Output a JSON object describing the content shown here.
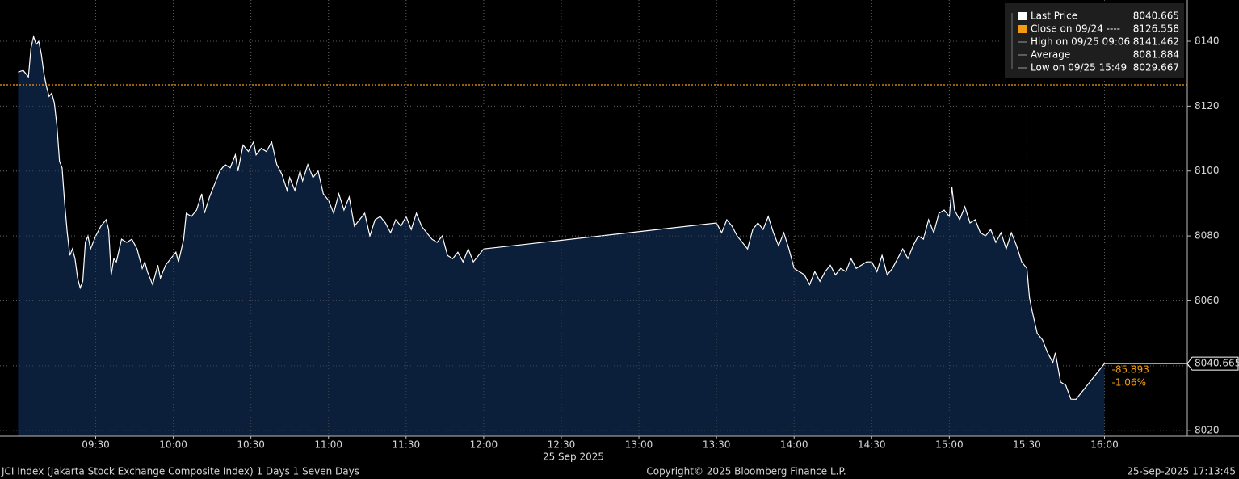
{
  "chart_data": {
    "type": "area",
    "xlabel": "25 Sep 2025",
    "x": [
      "09:00",
      "09:02",
      "09:04",
      "09:05",
      "09:06",
      "09:07",
      "09:08",
      "09:09",
      "09:10",
      "09:11",
      "09:12",
      "09:13",
      "09:14",
      "09:15",
      "09:16",
      "09:17",
      "09:18",
      "09:19",
      "09:20",
      "09:21",
      "09:22",
      "09:23",
      "09:24",
      "09:25",
      "09:26",
      "09:27",
      "09:28",
      "09:30",
      "09:32",
      "09:34",
      "09:35",
      "09:36",
      "09:37",
      "09:38",
      "09:40",
      "09:42",
      "09:44",
      "09:46",
      "09:48",
      "09:49",
      "09:50",
      "09:52",
      "09:54",
      "09:55",
      "09:57",
      "09:59",
      "10:01",
      "10:02",
      "10:04",
      "10:05",
      "10:07",
      "10:09",
      "10:11",
      "10:12",
      "10:14",
      "10:16",
      "10:18",
      "10:20",
      "10:22",
      "10:24",
      "10:25",
      "10:27",
      "10:29",
      "10:31",
      "10:32",
      "10:34",
      "10:36",
      "10:38",
      "10:40",
      "10:42",
      "10:44",
      "10:45",
      "10:47",
      "10:49",
      "10:50",
      "10:52",
      "10:54",
      "10:56",
      "10:58",
      "11:00",
      "11:02",
      "11:04",
      "11:06",
      "11:08",
      "11:10",
      "11:12",
      "11:14",
      "11:16",
      "11:18",
      "11:20",
      "11:22",
      "11:24",
      "11:26",
      "11:28",
      "11:30",
      "11:32",
      "11:34",
      "11:36",
      "11:38",
      "11:40",
      "11:42",
      "11:44",
      "11:46",
      "11:48",
      "11:50",
      "11:52",
      "11:54",
      "11:56",
      "11:58",
      "12:00",
      "13:30",
      "13:32",
      "13:34",
      "13:36",
      "13:38",
      "13:40",
      "13:42",
      "13:44",
      "13:46",
      "13:48",
      "13:50",
      "13:52",
      "13:54",
      "13:56",
      "13:58",
      "14:00",
      "14:02",
      "14:04",
      "14:06",
      "14:08",
      "14:10",
      "14:12",
      "14:14",
      "14:16",
      "14:18",
      "14:20",
      "14:22",
      "14:24",
      "14:26",
      "14:28",
      "14:30",
      "14:32",
      "14:34",
      "14:36",
      "14:38",
      "14:40",
      "14:42",
      "14:44",
      "14:46",
      "14:48",
      "14:50",
      "14:52",
      "14:54",
      "14:56",
      "14:58",
      "15:00",
      "15:01",
      "15:02",
      "15:04",
      "15:06",
      "15:08",
      "15:10",
      "15:12",
      "15:14",
      "15:16",
      "15:18",
      "15:20",
      "15:22",
      "15:24",
      "15:26",
      "15:28",
      "15:30",
      "15:31",
      "15:32",
      "15:34",
      "15:36",
      "15:38",
      "15:40",
      "15:41",
      "15:43",
      "15:45",
      "15:47",
      "15:49",
      "16:00"
    ],
    "series": [
      {
        "name": "Last Price",
        "color": "#ffffff",
        "fill": "#0b1f3a",
        "values": [
          8130.5,
          8131,
          8129,
          8138,
          8141.462,
          8139,
          8140,
          8136,
          8130,
          8126,
          8123,
          8124,
          8121,
          8114,
          8103,
          8101,
          8090,
          8081,
          8074,
          8076,
          8073,
          8067,
          8064,
          8066,
          8078,
          8080,
          8076,
          8080,
          8083,
          8085,
          8082,
          8068,
          8073,
          8072,
          8079,
          8078,
          8079,
          8076,
          8070,
          8072,
          8069,
          8065,
          8071,
          8067,
          8071,
          8073,
          8075,
          8072,
          8079,
          8087,
          8086,
          8088,
          8093,
          8087,
          8092,
          8096,
          8100,
          8102,
          8101,
          8105,
          8100,
          8108,
          8106,
          8109,
          8105,
          8107,
          8106,
          8109,
          8102,
          8099,
          8094,
          8098,
          8094,
          8100,
          8097,
          8102,
          8098,
          8100,
          8093,
          8091,
          8087,
          8093,
          8088,
          8092,
          8083,
          8085,
          8087,
          8080,
          8085,
          8086,
          8084,
          8081,
          8085,
          8083,
          8086,
          8082,
          8087,
          8083,
          8081,
          8079,
          8078,
          8080,
          8074,
          8073,
          8075,
          8072,
          8076,
          8072,
          8074,
          8076,
          8084,
          8081,
          8085,
          8083,
          8080,
          8078,
          8076,
          8082,
          8084,
          8082,
          8086,
          8081,
          8077,
          8081,
          8076,
          8070,
          8069,
          8068,
          8065,
          8069,
          8066,
          8069,
          8071,
          8068,
          8070,
          8069,
          8073,
          8070,
          8071,
          8072,
          8072,
          8069,
          8074,
          8068,
          8070,
          8073,
          8076,
          8073,
          8077,
          8080,
          8079,
          8085,
          8081,
          8087,
          8088,
          8086,
          8095,
          8088,
          8085,
          8089,
          8084,
          8085,
          8081,
          8080,
          8082,
          8078,
          8081,
          8076,
          8081,
          8077,
          8072,
          8070,
          8061,
          8057,
          8050,
          8048,
          8044,
          8041,
          8044,
          8035,
          8034,
          8029.7,
          8029.667,
          8040.665
        ]
      }
    ],
    "xlim": [
      "08:53",
      "16:32"
    ],
    "xticks": [
      "09:30",
      "10:00",
      "10:30",
      "11:00",
      "11:30",
      "12:00",
      "12:30",
      "13:00",
      "13:30",
      "14:00",
      "14:30",
      "15:00",
      "15:30",
      "16:00"
    ],
    "ylim": [
      8018.3,
      8152.7
    ],
    "yticks": [
      8020,
      8040,
      8060,
      8080,
      8100,
      8120,
      8140
    ],
    "grid": true,
    "legend": {
      "position": "top-right",
      "items": [
        {
          "label": "Last Price",
          "value": 8040.665,
          "color": "#ffffff"
        },
        {
          "label": "Close on 09/24 ----",
          "value": 8126.558,
          "color": "#f39c12"
        },
        {
          "label": "High on 09/25 09:06",
          "value": 8141.462,
          "color": "#9a9a9a"
        },
        {
          "label": "Average",
          "value": 8081.884,
          "color": "#9a9a9a"
        },
        {
          "label": "Low on 09/25 15:49",
          "value": 8029.667,
          "color": "#9a9a9a"
        }
      ]
    },
    "change": {
      "value": -85.893,
      "percent": {
        "value": -1.06,
        "label": "-1.06%"
      },
      "color": "#f39c12"
    },
    "footer": {
      "left": "JCI Index (Jakarta Stock Exchange Composite Index) 1 Days 1 Seven Days",
      "center": "Copyright© 2025 Bloomberg Finance L.P.",
      "right": "25-Sep-2025 17:13:45"
    }
  }
}
